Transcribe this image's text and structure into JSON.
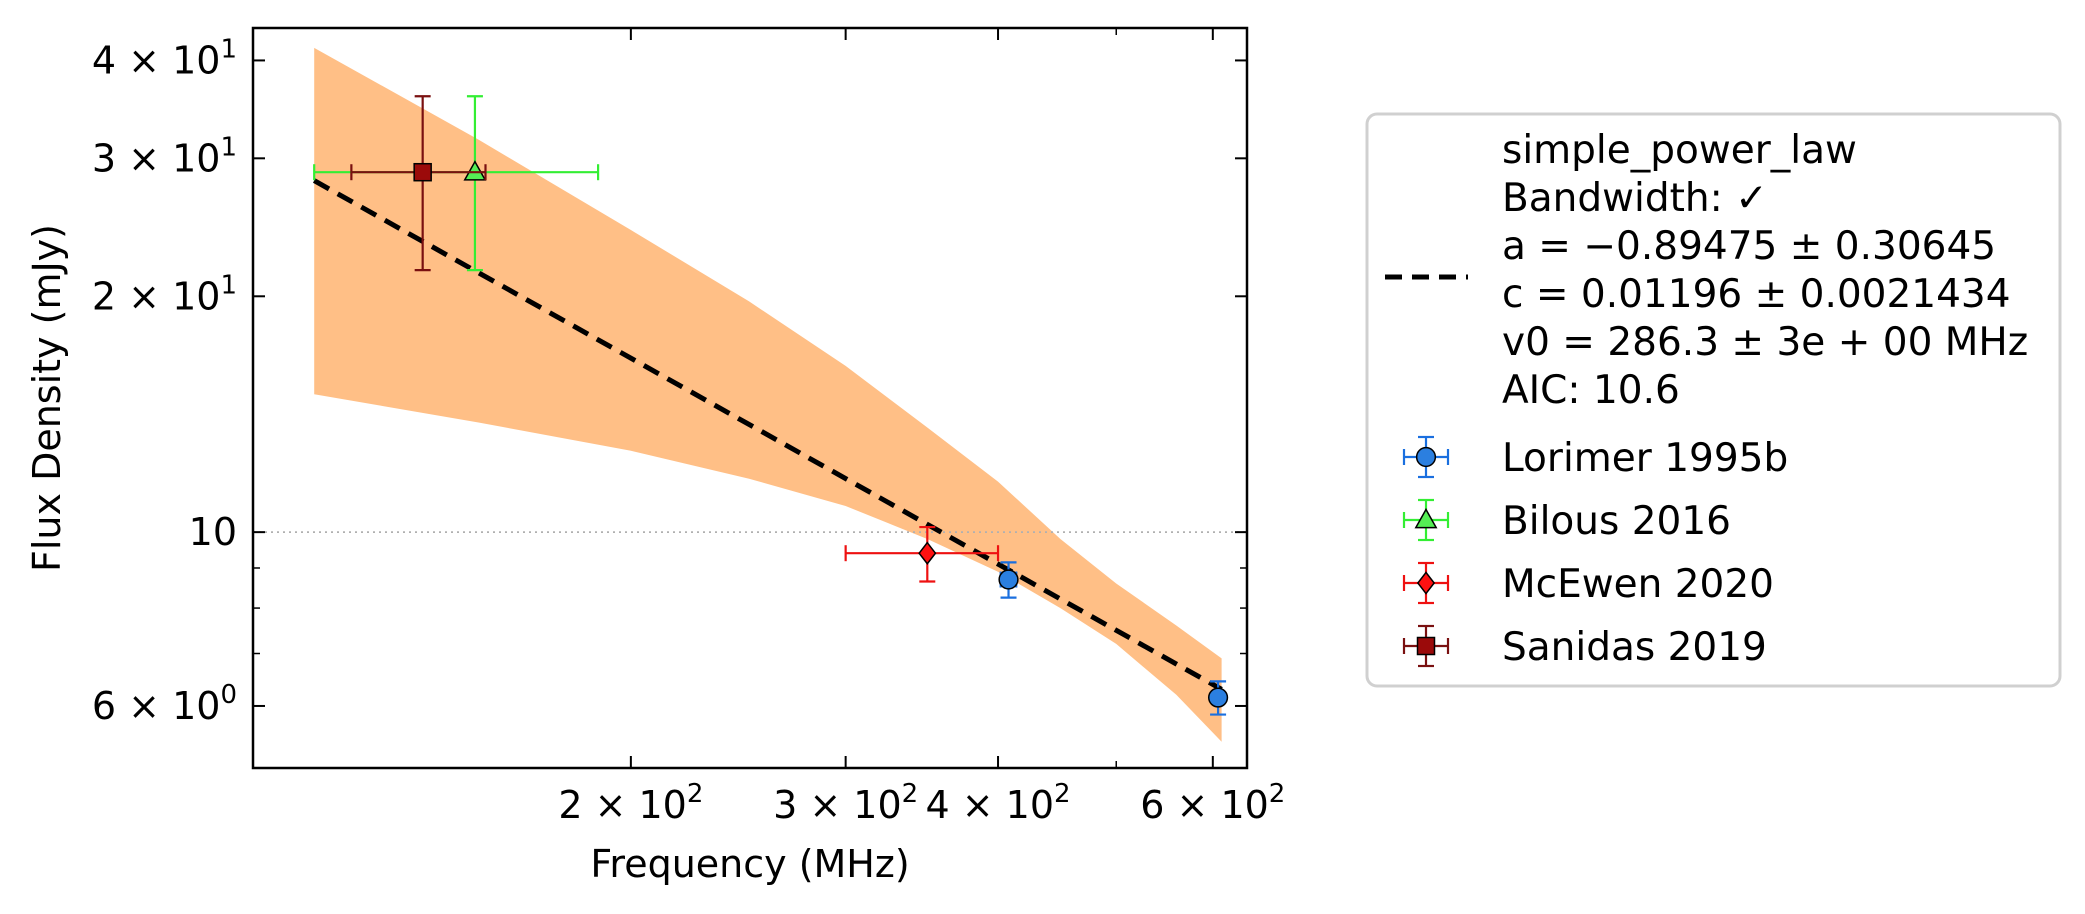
{
  "chart_data": {
    "type": "scatter",
    "xlabel": "Frequency (MHz)",
    "ylabel": "Flux Density (mJy)",
    "x_scale": "log",
    "y_scale": "log",
    "xlim": [
      98,
      640
    ],
    "ylim": [
      5.0,
      44.0
    ],
    "grid": false,
    "reference_line": {
      "y": 10,
      "style": "dotted",
      "color": "#b0b0b0"
    },
    "x_ticks": [
      {
        "value": 200,
        "mantissa": "2",
        "base": "10",
        "exp": "2"
      },
      {
        "value": 300,
        "mantissa": "3",
        "base": "10",
        "exp": "2"
      },
      {
        "value": 400,
        "mantissa": "4",
        "base": "10",
        "exp": "2"
      },
      {
        "value": 600,
        "mantissa": "6",
        "base": "10",
        "exp": "2"
      }
    ],
    "x_minor_ticks": [
      500
    ],
    "y_ticks": [
      {
        "value": 40,
        "mantissa": "4",
        "base": "10",
        "exp": "1"
      },
      {
        "value": 30,
        "mantissa": "3",
        "base": "10",
        "exp": "1"
      },
      {
        "value": 20,
        "mantissa": "2",
        "base": "10",
        "exp": "1"
      },
      {
        "value": 10,
        "plain": "10"
      },
      {
        "value": 6,
        "mantissa": "6",
        "base": "10",
        "exp": "0"
      }
    ],
    "y_minor_ticks": [
      7,
      8,
      9
    ],
    "model": {
      "name": "simple_power_law",
      "lines": [
        "simple_power_law",
        "Bandwidth: ✓",
        "a = −0.89475 ± 0.30645",
        "c = 0.01196 ± 0.0021434",
        "v0 = 286.3 ± 3e + 00 MHz",
        "AIC: 10.6"
      ],
      "fit_line": {
        "x": [
          110,
          610
        ],
        "y": [
          28.1,
          6.3
        ]
      },
      "uncertainty_band": {
        "color": "#ffbf86",
        "x": [
          110,
          150,
          200,
          250,
          300,
          350,
          400,
          450,
          500,
          560,
          610
        ],
        "upper": [
          41.5,
          31.7,
          24.3,
          19.7,
          16.3,
          13.6,
          11.6,
          9.8,
          8.6,
          7.6,
          6.9
        ],
        "lower": [
          15.0,
          13.8,
          12.7,
          11.7,
          10.8,
          9.8,
          8.9,
          8.0,
          7.2,
          6.2,
          5.4
        ]
      }
    },
    "series": [
      {
        "name": "Lorimer 1995b",
        "color": "#1a6fdf",
        "face": "#2b7fe0",
        "marker": "circle",
        "points": [
          {
            "x": 408,
            "y": 8.7,
            "xerr": [
              6,
              6
            ],
            "yerr": [
              0.45,
              0.45
            ]
          },
          {
            "x": 606,
            "y": 6.15,
            "xerr": [
              6,
              6
            ],
            "yerr": [
              0.3,
              0.3
            ]
          }
        ]
      },
      {
        "name": "Bilous 2016",
        "color": "#33ee33",
        "face": "#55ee55",
        "marker": "triangle",
        "points": [
          {
            "x": 149,
            "y": 28.8,
            "xerr": [
              39,
              39
            ],
            "yerr": [
              7.2,
              7.2
            ]
          }
        ]
      },
      {
        "name": "McEwen 2020",
        "color": "#ee1111",
        "face": "#ff1111",
        "marker": "diamond",
        "points": [
          {
            "x": 350,
            "y": 9.4,
            "xerr": [
              50,
              50
            ],
            "yerr": [
              0.75,
              0.75
            ]
          }
        ]
      },
      {
        "name": "Sanidas 2019",
        "color": "#7a1010",
        "face": "#9b0a0a",
        "marker": "square",
        "points": [
          {
            "x": 135,
            "y": 28.8,
            "xerr": [
              17,
              17
            ],
            "yerr": [
              7.2,
              7.2
            ]
          }
        ]
      }
    ]
  }
}
